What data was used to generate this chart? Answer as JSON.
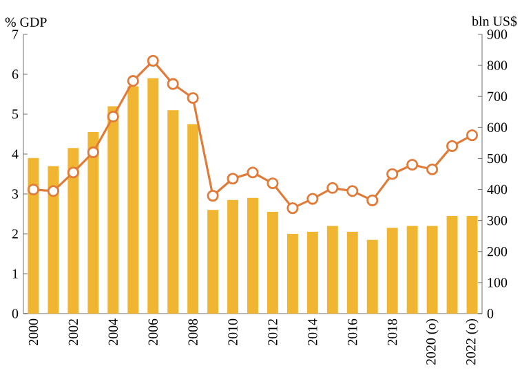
{
  "chart_data": {
    "type": "bar",
    "ylabel": "% GDP",
    "y2label": "bln US$",
    "categories": [
      "2000",
      null,
      "2002",
      null,
      "2004",
      null,
      "2006",
      null,
      "2008",
      null,
      "2010",
      null,
      "2012",
      null,
      "2014",
      null,
      "2016",
      null,
      "2018",
      null,
      "2020 (o)",
      null,
      "2022 (o)"
    ],
    "series": [
      {
        "color": "#f0b631",
        "values": [
          3.9,
          3.7,
          4.15,
          4.55,
          5.2,
          5.7,
          5.9,
          5.1,
          4.75,
          2.6,
          2.85,
          2.9,
          2.55,
          2.0,
          2.05,
          2.2,
          2.05,
          1.85,
          2.15,
          2.2,
          2.2,
          2.45,
          2.45
        ]
      },
      {
        "type": "line",
        "axis": "y2",
        "color": "#e07b39",
        "marker": "circle",
        "line_style": "solid",
        "values": [
          400,
          395,
          455,
          520,
          635,
          750,
          815,
          740,
          695,
          380,
          435,
          455,
          420,
          340,
          370,
          405,
          395,
          365,
          450,
          480,
          465,
          540,
          575
        ]
      }
    ],
    "ylim": [
      0,
      7
    ],
    "yticks": [
      0,
      1,
      2,
      3,
      4,
      5,
      6,
      7
    ],
    "y2lim": [
      0,
      900
    ],
    "y2ticks": [
      0,
      100,
      200,
      300,
      400,
      500,
      600,
      700,
      800,
      900
    ],
    "grid": false
  }
}
